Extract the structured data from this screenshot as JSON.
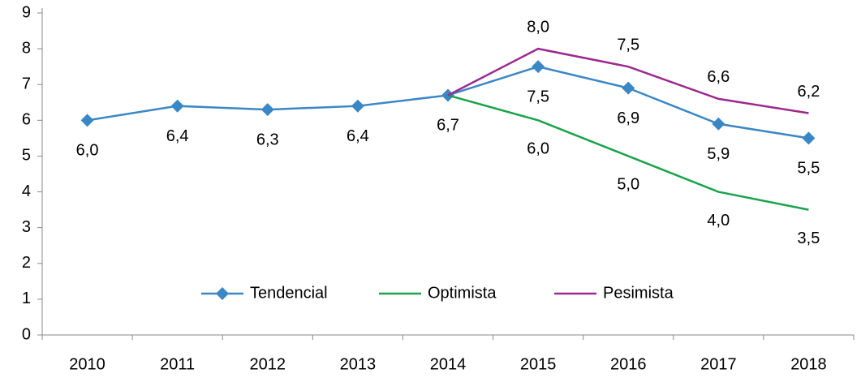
{
  "chart_data": {
    "type": "line",
    "categories": [
      "2010",
      "2011",
      "2012",
      "2013",
      "2014",
      "2015",
      "2016",
      "2017",
      "2018"
    ],
    "series": [
      {
        "name": "Tendencial",
        "color": "#3a87c5",
        "marker": "diamond",
        "values": [
          6.0,
          6.4,
          6.3,
          6.4,
          6.7,
          7.5,
          6.9,
          5.9,
          5.5
        ],
        "value_labels": [
          "6,0",
          "6,4",
          "6,3",
          "6,4",
          "6,7",
          "7,5",
          "6,9",
          "5,9",
          "5,5"
        ]
      },
      {
        "name": "Optimista",
        "color": "#1aa34a",
        "values": [
          null,
          null,
          null,
          null,
          6.7,
          6.0,
          5.0,
          4.0,
          3.5
        ],
        "value_labels": [
          null,
          null,
          null,
          null,
          null,
          "6,0",
          "5,0",
          "4,0",
          "3,5"
        ]
      },
      {
        "name": "Pesimista",
        "color": "#9b2a8e",
        "values": [
          null,
          null,
          null,
          null,
          6.7,
          8.0,
          7.5,
          6.6,
          6.2
        ],
        "value_labels": [
          null,
          null,
          null,
          null,
          null,
          "8,0",
          "7,5",
          "6,6",
          "6,2"
        ]
      }
    ],
    "ylim": [
      0,
      9
    ],
    "yticks": [
      0,
      1,
      2,
      3,
      4,
      5,
      6,
      7,
      8,
      9
    ],
    "grid": false,
    "legend": "bottom"
  }
}
